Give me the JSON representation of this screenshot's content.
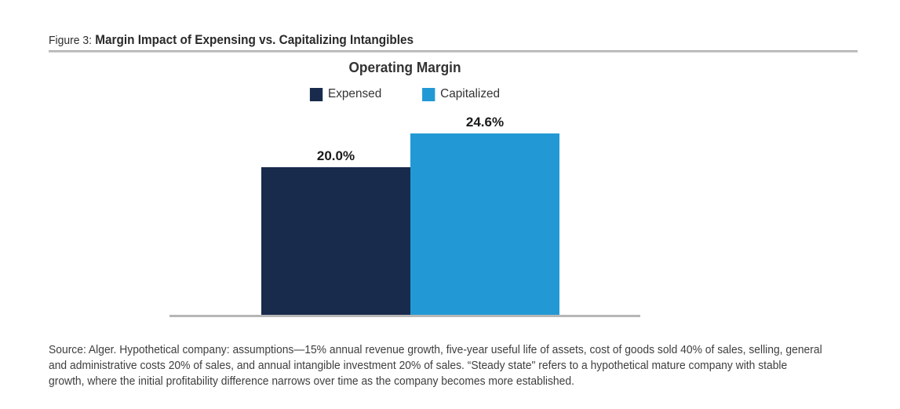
{
  "figure": {
    "label": "Figure 3:",
    "title": "Margin Impact of Expensing vs. Capitalizing Intangibles"
  },
  "chart_data": {
    "type": "bar",
    "title": "Operating Margin",
    "categories": [
      "Expensed",
      "Capitalized"
    ],
    "values": [
      20.0,
      24.6
    ],
    "value_labels": [
      "20.0%",
      "24.6%"
    ],
    "colors": [
      "#182B4D",
      "#2299D4"
    ],
    "ylim": [
      0,
      26
    ],
    "xlabel": "",
    "ylabel": "",
    "grid": false,
    "legend_position": "top",
    "axis_color": "#b7b7b7"
  },
  "footer": {
    "source_lines": [
      "Source: Alger. Hypothetical company: assumptions—15% annual revenue growth, five-year useful life of assets, cost of goods sold 40% of sales, selling, general",
      "and administrative costs 20% of sales, and annual intangible investment 20% of sales. “Steady state\" refers to a hypothetical mature company with stable",
      "growth, where the initial profitability difference narrows over time as the company becomes more established."
    ]
  }
}
